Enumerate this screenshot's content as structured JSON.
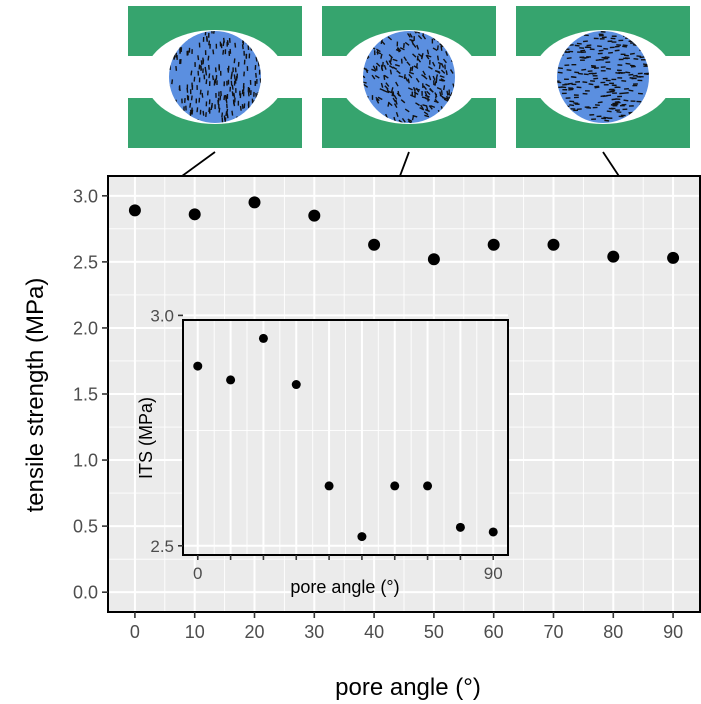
{
  "colors": {
    "panel_bg": "#ebebeb",
    "grid": "#ffffff",
    "frame": "#000000",
    "point": "#000000",
    "schematic_green": "#36a46e",
    "schematic_blue": "#5b8fe0",
    "schematic_dash": "#111111"
  },
  "schematics": [
    {
      "pore_angle": 0,
      "pattern": "vertical-dashes"
    },
    {
      "pore_angle": 40,
      "pattern": "diagonal-dashes"
    },
    {
      "pore_angle": 90,
      "pattern": "horizontal-dashes"
    }
  ],
  "chart_data": [
    {
      "id": "main",
      "type": "scatter",
      "title": "",
      "xlabel": "pore angle (°)",
      "ylabel": "tensile strength (MPa)",
      "x": [
        0,
        10,
        20,
        30,
        40,
        50,
        60,
        70,
        80,
        90
      ],
      "y": [
        2.89,
        2.86,
        2.95,
        2.85,
        2.63,
        2.52,
        2.63,
        2.63,
        2.54,
        2.53
      ],
      "xlim": [
        -4.5,
        94.5
      ],
      "ylim": [
        -0.15,
        3.15
      ],
      "xticks": [
        0,
        10,
        20,
        30,
        40,
        50,
        60,
        70,
        80,
        90
      ],
      "xtick_labels": [
        "0",
        "10",
        "20",
        "30",
        "40",
        "50",
        "60",
        "70",
        "80",
        "90"
      ],
      "yticks": [
        0.0,
        0.5,
        1.0,
        1.5,
        2.0,
        2.5,
        3.0
      ],
      "ytick_labels": [
        "0.0",
        "0.5",
        "1.0",
        "1.5",
        "2.0",
        "2.5",
        "3.0"
      ],
      "grid": true,
      "legend": "none"
    },
    {
      "id": "inset",
      "type": "scatter",
      "title": "",
      "xlabel": "pore angle (°)",
      "ylabel": "ITS (MPa)",
      "x": [
        0,
        10,
        20,
        30,
        40,
        50,
        60,
        70,
        80,
        90
      ],
      "y": [
        2.89,
        2.86,
        2.95,
        2.85,
        2.63,
        2.52,
        2.63,
        2.63,
        2.54,
        2.53
      ],
      "xlim": [
        -4.5,
        94.5
      ],
      "ylim": [
        2.48,
        2.99
      ],
      "xticks": [
        0,
        10,
        20,
        30,
        40,
        50,
        60,
        70,
        80,
        90
      ],
      "xtick_labels": [
        "0",
        "",
        "",
        "",
        "",
        "",
        "",
        "",
        "",
        "90"
      ],
      "yticks": [
        2.5,
        3.0
      ],
      "ytick_labels": [
        "2.5",
        "3.0"
      ],
      "grid": true,
      "legend": "none"
    }
  ]
}
